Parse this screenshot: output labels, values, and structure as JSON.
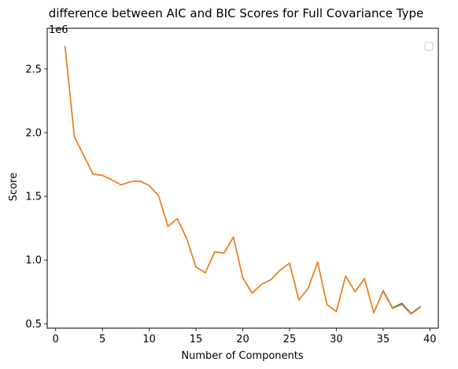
{
  "chart_data": {
    "type": "line",
    "title": "difference between AIC and BIC Scores for Full Covariance Type",
    "xlabel": "Number of Components",
    "ylabel": "Score",
    "y_offset_label": "1e6",
    "xlim": [
      -0.9,
      40.9
    ],
    "ylim": [
      0.465,
      2.82
    ],
    "x_ticks": [
      0,
      5,
      10,
      15,
      20,
      25,
      30,
      35,
      40
    ],
    "x_tick_labels": [
      "0",
      "5",
      "10",
      "15",
      "20",
      "25",
      "30",
      "35",
      "40"
    ],
    "y_ticks": [
      0.5,
      1.0,
      1.5,
      2.0,
      2.5
    ],
    "y_tick_labels": [
      "0.5",
      "1.0",
      "1.5",
      "2.0",
      "2.5"
    ],
    "grid": false,
    "legend": {
      "placement": "top-right",
      "entries": []
    },
    "x": [
      1,
      2,
      3,
      4,
      5,
      6,
      7,
      8,
      9,
      10,
      11,
      12,
      13,
      14,
      15,
      16,
      17,
      18,
      19,
      20,
      21,
      22,
      23,
      24,
      25,
      26,
      27,
      28,
      29,
      30,
      31,
      32,
      33,
      34,
      35,
      36,
      37,
      38,
      39
    ],
    "series": [
      {
        "color": "#1f77b4",
        "values": [
          2.68,
          1.97,
          1.82,
          1.675,
          1.665,
          1.63,
          1.59,
          1.615,
          1.62,
          1.585,
          1.505,
          1.265,
          1.325,
          1.17,
          0.945,
          0.9,
          1.065,
          1.055,
          1.18,
          0.86,
          0.74,
          0.81,
          0.845,
          0.92,
          0.975,
          0.685,
          0.78,
          0.985,
          0.65,
          0.595,
          0.875,
          0.75,
          0.855,
          0.585,
          0.76,
          0.625,
          0.66,
          0.58,
          0.635
        ]
      },
      {
        "color": "#ff7f0e",
        "values": [
          2.68,
          1.97,
          1.82,
          1.675,
          1.665,
          1.63,
          1.59,
          1.615,
          1.62,
          1.585,
          1.505,
          1.265,
          1.325,
          1.17,
          0.945,
          0.9,
          1.065,
          1.055,
          1.18,
          0.86,
          0.74,
          0.81,
          0.845,
          0.92,
          0.975,
          0.685,
          0.78,
          0.985,
          0.65,
          0.595,
          0.875,
          0.75,
          0.855,
          0.585,
          0.755,
          0.62,
          0.65,
          0.575,
          0.63
        ]
      }
    ]
  }
}
